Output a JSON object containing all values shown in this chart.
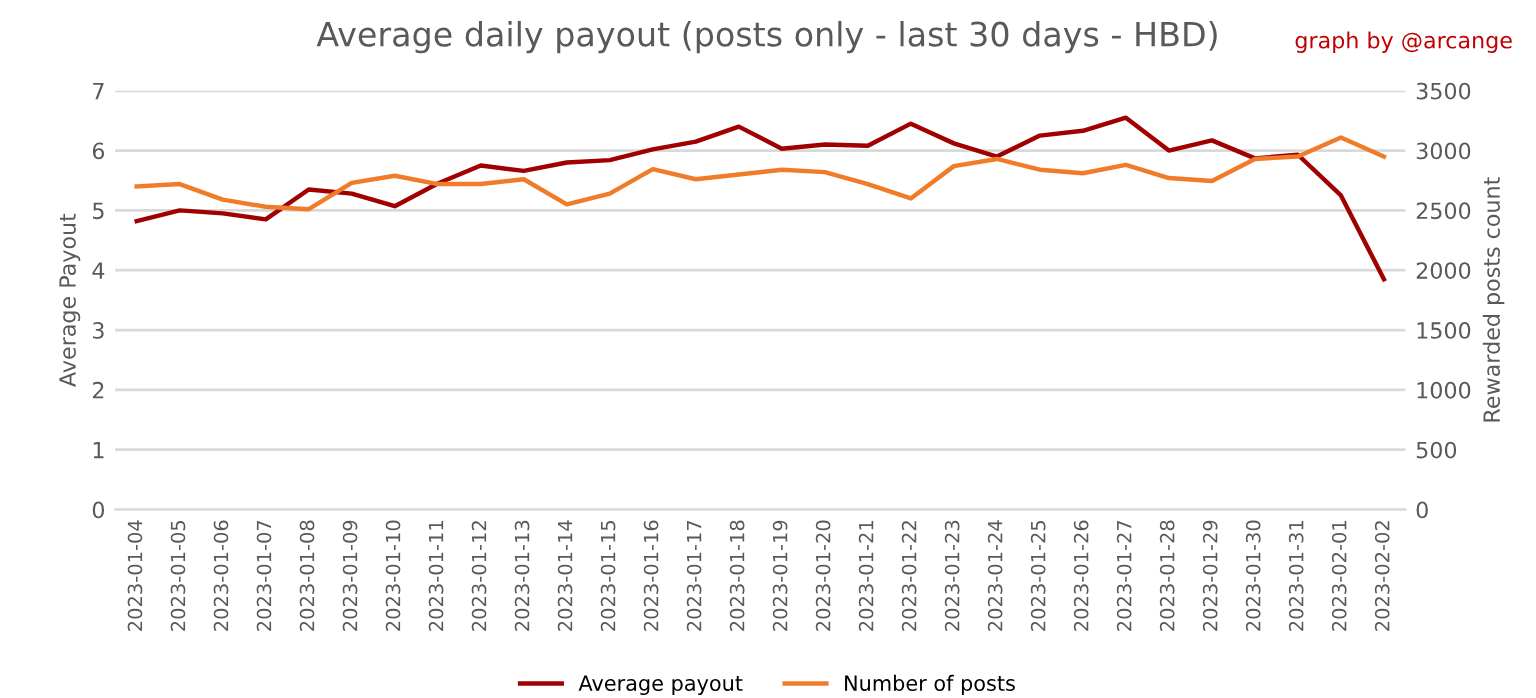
{
  "chart_data": {
    "type": "line",
    "title": "Average daily payout (posts only - last 30 days - HBD)",
    "ylabel": "Average Payout",
    "y2label": "Rewarded posts count",
    "annotations": [
      "graph by @arcange"
    ],
    "categories": [
      "2023-01-04",
      "2023-01-05",
      "2023-01-06",
      "2023-01-07",
      "2023-01-08",
      "2023-01-09",
      "2023-01-10",
      "2023-01-11",
      "2023-01-12",
      "2023-01-13",
      "2023-01-14",
      "2023-01-15",
      "2023-01-16",
      "2023-01-17",
      "2023-01-18",
      "2023-01-19",
      "2023-01-20",
      "2023-01-21",
      "2023-01-22",
      "2023-01-23",
      "2023-01-24",
      "2023-01-25",
      "2023-01-26",
      "2023-01-27",
      "2023-01-28",
      "2023-01-29",
      "2023-01-30",
      "2023-01-31",
      "2023-02-01",
      "2023-02-02"
    ],
    "series": [
      {
        "name": "Average payout",
        "color": "#a00000",
        "values": [
          4.82,
          5.0,
          4.95,
          4.85,
          5.35,
          5.28,
          5.07,
          5.45,
          5.75,
          5.66,
          5.8,
          5.84,
          6.02,
          6.15,
          6.4,
          6.03,
          6.1,
          6.08,
          6.45,
          6.12,
          5.9,
          6.25,
          6.33,
          6.55,
          6.0,
          6.17,
          5.87,
          5.93,
          5.25,
          3.85
        ]
      },
      {
        "name": "Number of posts",
        "color": "#f07c2a",
        "axis": "y2",
        "values": [
          2700,
          2720,
          2590,
          2530,
          2510,
          2730,
          2790,
          2720,
          2720,
          2760,
          2550,
          2640,
          2845,
          2760,
          2800,
          2840,
          2820,
          2720,
          2600,
          2870,
          2930,
          2840,
          2810,
          2880,
          2770,
          2745,
          2930,
          2950,
          3110,
          2950
        ]
      }
    ],
    "ylim": [
      0,
      7
    ],
    "yticks": [
      0,
      1,
      2,
      3,
      4,
      5,
      6,
      7
    ],
    "y2lim": [
      0,
      3500
    ],
    "y2ticks": [
      0,
      500,
      1000,
      1500,
      2000,
      2500,
      3000,
      3500
    ],
    "grid": "y",
    "legend": "bottom",
    "marker": "none",
    "line_style": "solid"
  }
}
